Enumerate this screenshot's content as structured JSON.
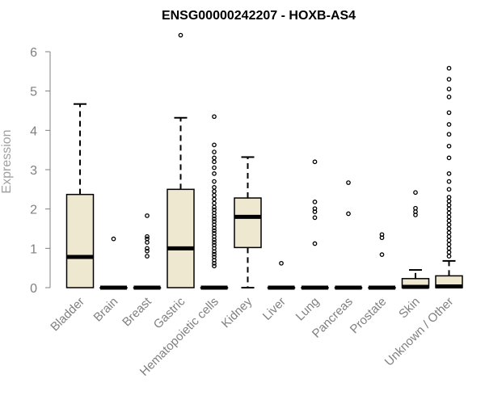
{
  "chart_data": {
    "type": "boxplot",
    "title": "ENSG00000242207 - HOXB-AS4",
    "ylabel": "Expression",
    "xlabel": "",
    "ylim": [
      0,
      6.5
    ],
    "yticks": [
      0,
      1,
      2,
      3,
      4,
      5,
      6
    ],
    "colors": {
      "box_fill": "#efe8d0",
      "stroke": "#000000",
      "axis": "#808080"
    },
    "categories": [
      "Bladder",
      "Brain",
      "Breast",
      "Gastric",
      "Hematopoietic cells",
      "Kidney",
      "Liver",
      "Lung",
      "Pancreas",
      "Prostate",
      "Skin",
      "Unknown / Other"
    ],
    "boxes": [
      {
        "whisker_low": 0,
        "q1": 0,
        "median": 0.78,
        "q3": 2.37,
        "whisker_high": 4.67,
        "outliers": []
      },
      {
        "whisker_low": 0,
        "q1": 0,
        "median": 0,
        "q3": 0,
        "whisker_high": 0,
        "outliers": [
          1.24
        ]
      },
      {
        "whisker_low": 0,
        "q1": 0,
        "median": 0,
        "q3": 0,
        "whisker_high": 0,
        "outliers": [
          0.8,
          0.93,
          1.0,
          1.15,
          1.24,
          1.3,
          1.83
        ]
      },
      {
        "whisker_low": 0,
        "q1": 0,
        "median": 1.0,
        "q3": 2.5,
        "whisker_high": 4.32,
        "outliers": [
          6.42
        ]
      },
      {
        "whisker_low": 0,
        "q1": 0,
        "median": 0,
        "q3": 0,
        "whisker_high": 0,
        "outliers": [
          0.55,
          0.62,
          0.7,
          0.78,
          0.85,
          0.92,
          1.0,
          1.08,
          1.15,
          1.22,
          1.3,
          1.38,
          1.45,
          1.52,
          1.6,
          1.68,
          1.75,
          1.82,
          1.9,
          1.98,
          2.05,
          2.15,
          2.25,
          2.35,
          2.45,
          2.55,
          2.7,
          2.9,
          3.05,
          3.2,
          3.3,
          3.45,
          3.63,
          4.35
        ]
      },
      {
        "whisker_low": 0,
        "q1": 1.02,
        "median": 1.8,
        "q3": 2.28,
        "whisker_high": 3.32,
        "outliers": []
      },
      {
        "whisker_low": 0,
        "q1": 0,
        "median": 0,
        "q3": 0,
        "whisker_high": 0,
        "outliers": [
          0.62
        ]
      },
      {
        "whisker_low": 0,
        "q1": 0,
        "median": 0,
        "q3": 0,
        "whisker_high": 0,
        "outliers": [
          1.12,
          1.78,
          1.93,
          2.01,
          2.18,
          3.2
        ]
      },
      {
        "whisker_low": 0,
        "q1": 0,
        "median": 0,
        "q3": 0,
        "whisker_high": 0,
        "outliers": [
          1.88,
          2.67
        ]
      },
      {
        "whisker_low": 0,
        "q1": 0,
        "median": 0,
        "q3": 0,
        "whisker_high": 0,
        "outliers": [
          0.84,
          1.27,
          1.35
        ]
      },
      {
        "whisker_low": 0,
        "q1": 0,
        "median": 0.02,
        "q3": 0.23,
        "whisker_high": 0.45,
        "outliers": [
          1.85,
          1.93,
          2.02,
          2.42
        ]
      },
      {
        "whisker_low": 0,
        "q1": 0,
        "median": 0.03,
        "q3": 0.3,
        "whisker_high": 0.68,
        "outliers": [
          0.8,
          0.9,
          1.0,
          1.1,
          1.2,
          1.3,
          1.4,
          1.5,
          1.6,
          1.7,
          1.8,
          1.9,
          2.0,
          2.1,
          2.2,
          2.3,
          2.5,
          2.7,
          2.9,
          3.3,
          3.6,
          3.9,
          4.15,
          4.45,
          4.85,
          5.05,
          5.3,
          5.58
        ]
      }
    ]
  }
}
